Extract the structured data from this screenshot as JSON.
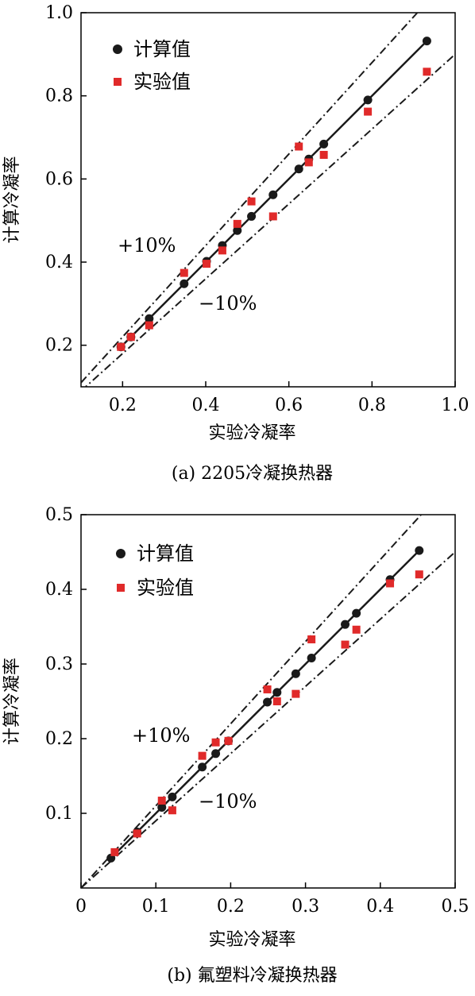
{
  "chart_data": [
    {
      "type": "scatter",
      "caption": "(a) 2205冷凝换热器",
      "xlabel": "实验冷凝率",
      "ylabel": "计算冷凝率",
      "xlim": [
        0.1,
        1.0
      ],
      "ylim": [
        0.1,
        1.0
      ],
      "x_ticks": [
        "0.2",
        "0.4",
        "0.6",
        "0.8",
        "1.0"
      ],
      "y_ticks": [
        "0.2",
        "0.4",
        "0.6",
        "0.8",
        "1.0"
      ],
      "legend": [
        "计算值",
        "实验值"
      ],
      "legend_position": "top-left",
      "annotations": [
        "+10%",
        "−10%"
      ],
      "grid": false,
      "series": [
        {
          "name": "计算值",
          "marker": "circle",
          "color": "#1a1a1a",
          "x": [
            0.196,
            0.22,
            0.264,
            0.348,
            0.402,
            0.44,
            0.476,
            0.51,
            0.562,
            0.624,
            0.648,
            0.684,
            0.79,
            0.932
          ],
          "y": [
            0.196,
            0.22,
            0.264,
            0.348,
            0.402,
            0.44,
            0.476,
            0.51,
            0.562,
            0.624,
            0.648,
            0.684,
            0.79,
            0.932
          ]
        },
        {
          "name": "实验值",
          "marker": "square",
          "color": "#e02a2a",
          "x": [
            0.196,
            0.22,
            0.264,
            0.348,
            0.402,
            0.44,
            0.476,
            0.51,
            0.562,
            0.624,
            0.648,
            0.684,
            0.79,
            0.932
          ],
          "y": [
            0.196,
            0.22,
            0.248,
            0.374,
            0.396,
            0.428,
            0.492,
            0.546,
            0.51,
            0.678,
            0.64,
            0.658,
            0.762,
            0.858
          ]
        }
      ]
    },
    {
      "type": "scatter",
      "caption": "(b) 氟塑料冷凝换热器",
      "xlabel": "实验冷凝率",
      "ylabel": "计算冷凝率",
      "xlim": [
        0,
        0.5
      ],
      "ylim": [
        0,
        0.5
      ],
      "x_ticks": [
        "0",
        "0.1",
        "0.2",
        "0.3",
        "0.4",
        "0.5"
      ],
      "y_ticks": [
        "0.1",
        "0.2",
        "0.3",
        "0.4",
        "0.5"
      ],
      "legend": [
        "计算值",
        "实验值"
      ],
      "legend_position": "top-left",
      "annotations": [
        "+10%",
        "−10%"
      ],
      "grid": false,
      "series": [
        {
          "name": "计算值",
          "marker": "circle",
          "color": "#1a1a1a",
          "x": [
            0.04,
            0.075,
            0.108,
            0.122,
            0.162,
            0.18,
            0.197,
            0.249,
            0.262,
            0.287,
            0.308,
            0.353,
            0.368,
            0.413,
            0.452
          ],
          "y": [
            0.04,
            0.075,
            0.108,
            0.122,
            0.162,
            0.18,
            0.197,
            0.249,
            0.262,
            0.287,
            0.308,
            0.353,
            0.368,
            0.413,
            0.452
          ]
        },
        {
          "name": "实验值",
          "marker": "square",
          "color": "#e02a2a",
          "x": [
            0.045,
            0.075,
            0.108,
            0.122,
            0.162,
            0.18,
            0.197,
            0.249,
            0.262,
            0.287,
            0.308,
            0.353,
            0.368,
            0.413,
            0.452
          ],
          "y": [
            0.048,
            0.073,
            0.117,
            0.104,
            0.177,
            0.195,
            0.197,
            0.266,
            0.25,
            0.26,
            0.333,
            0.326,
            0.346,
            0.408,
            0.42
          ]
        }
      ]
    }
  ]
}
